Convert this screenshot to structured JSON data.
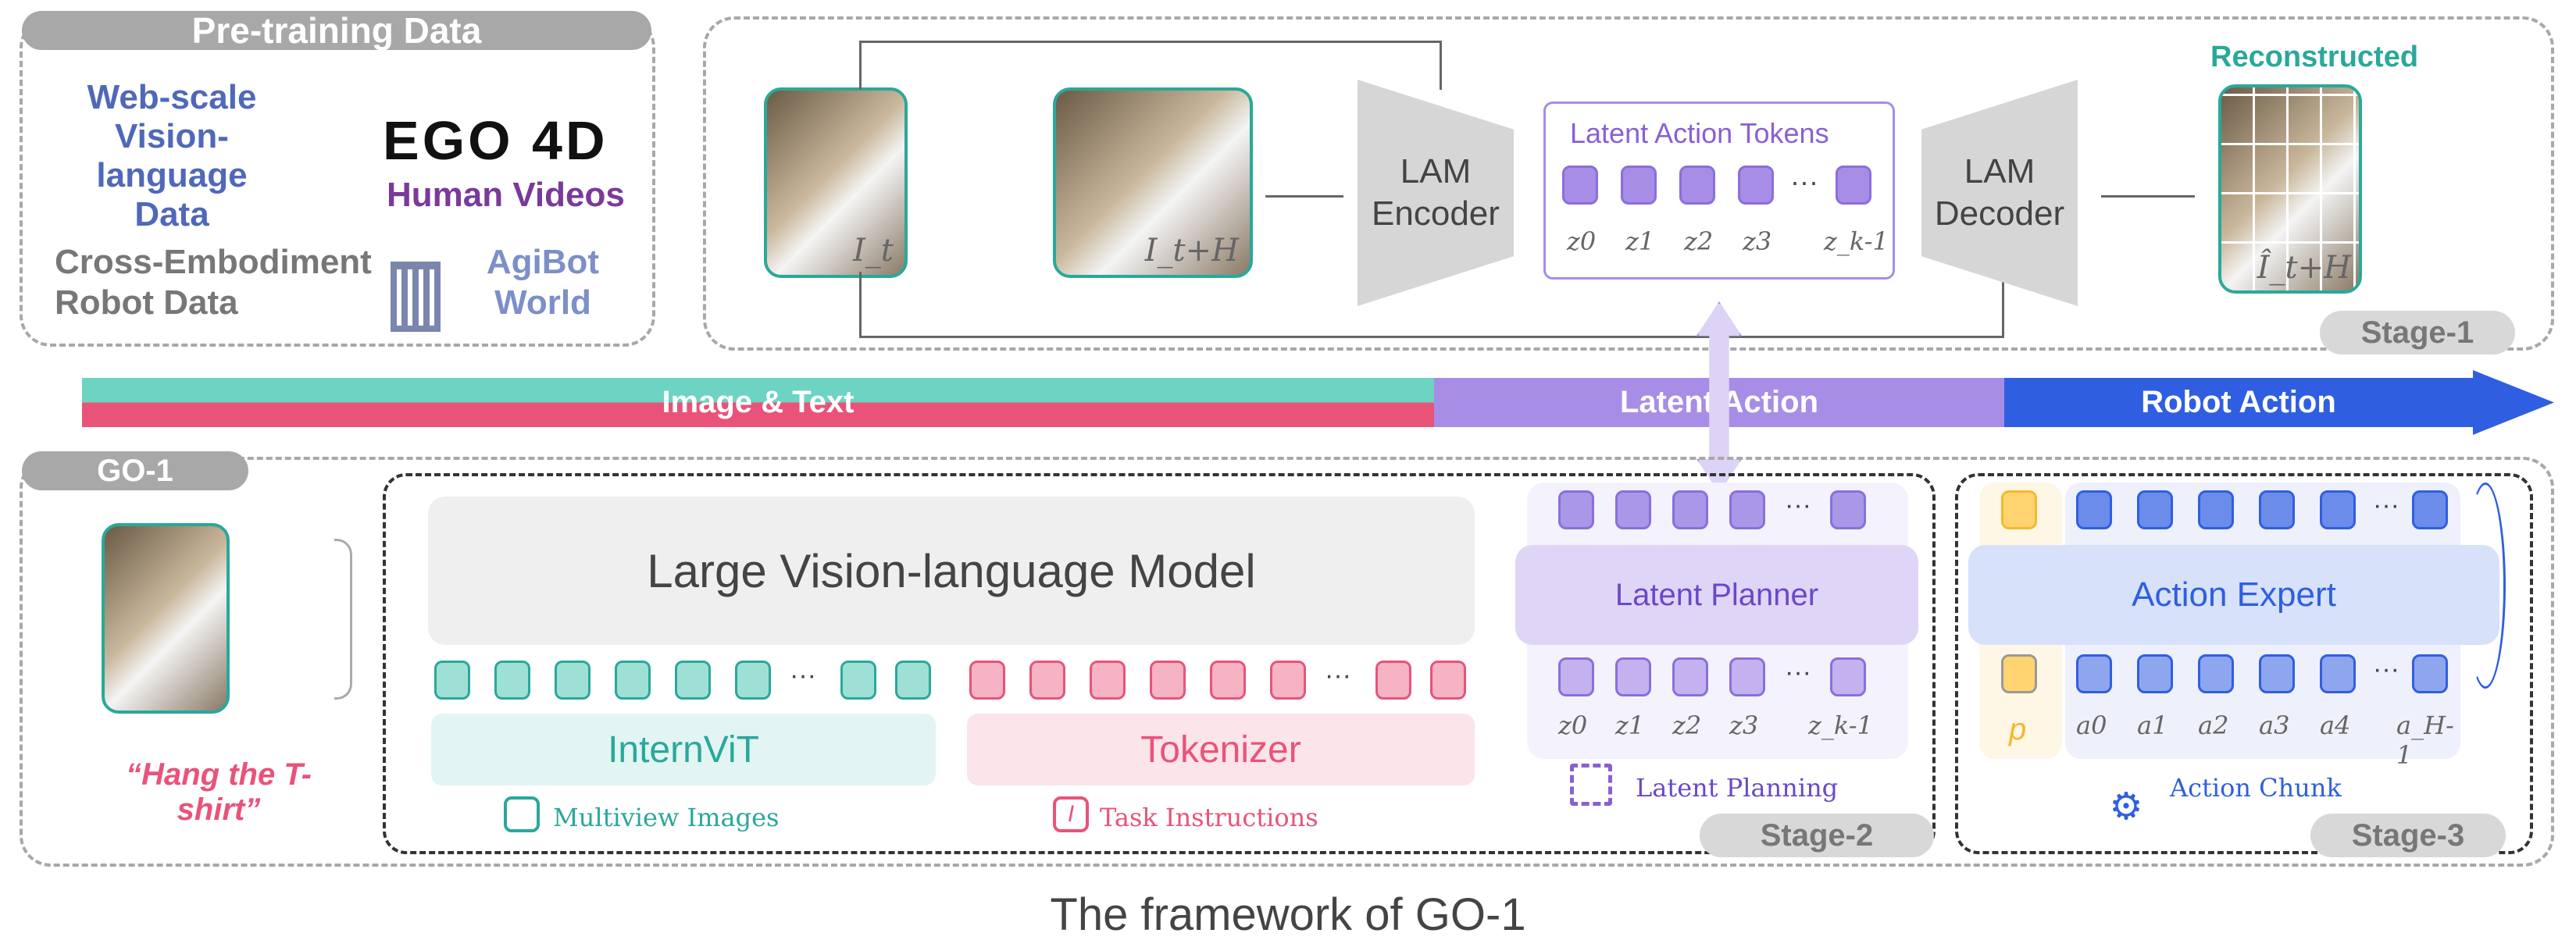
{
  "pretraining": {
    "title": "Pre-training Data",
    "web": "Web-scale Vision-language Data",
    "ego_logo": "EGO 4D",
    "ego": "Human Videos",
    "cross": "Cross-Embodiment Robot Data",
    "agibot": "AgiBot World"
  },
  "stage1": {
    "reconstructed": "Reconstructed",
    "frame_t": "I_t",
    "frame_tH": "I_t+H",
    "frame_hat": "Î_t+H",
    "encoder": "LAM Encoder",
    "decoder": "LAM Decoder",
    "tokens_title": "Latent Action Tokens",
    "z_labels": [
      "z0",
      "z1",
      "z2",
      "z3",
      "z_k-1"
    ],
    "ellipsis": "···",
    "stage": "Stage-1"
  },
  "bar": {
    "image_text": "Image & Text",
    "latent_action": "Latent Action",
    "robot_action": "Robot Action",
    "colors": {
      "teal": "#6dd3c3",
      "pink": "#e9537a",
      "purple": "#a78de6",
      "blue": "#2f5fe0"
    }
  },
  "go1": {
    "title": "GO-1",
    "instruction": "“Hang the T-shirt”",
    "vlm": "Large Vision-language Model",
    "internvit": "InternViT",
    "tokenizer": "Tokenizer",
    "multiview": "Multiview Images",
    "task": "Task Instructions",
    "latent_planner": "Latent Planner",
    "latent_planning": "Latent Planning",
    "z_labels": [
      "z0",
      "z1",
      "z2",
      "z3",
      "z_k-1"
    ],
    "stage2": "Stage-2",
    "action_expert": "Action Expert",
    "p": "p",
    "a_labels": [
      "a0",
      "a1",
      "a2",
      "a3",
      "a4",
      "a_H-1"
    ],
    "action_chunk": "Action Chunk",
    "stage3": "Stage-3"
  },
  "caption": "The framework of GO-1"
}
